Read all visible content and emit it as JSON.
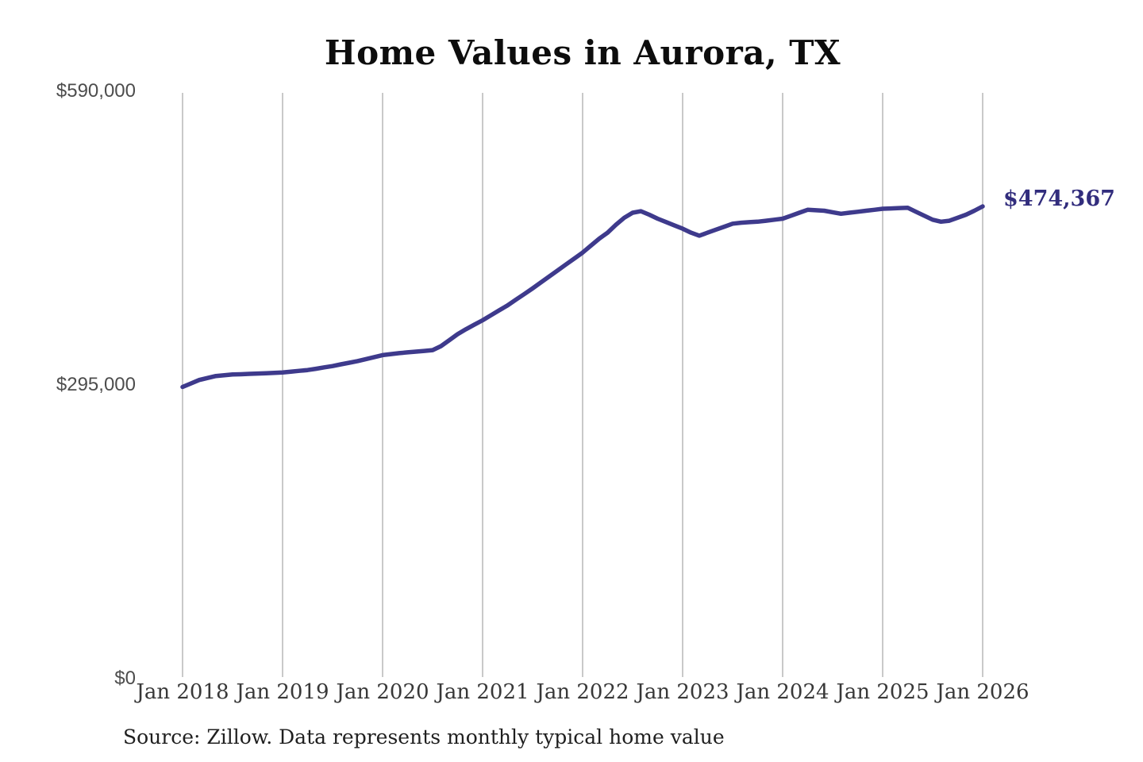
{
  "chart_data": {
    "type": "line",
    "title": "Home Values in Aurora, TX",
    "xlabel": "",
    "ylabel": "",
    "x_labels": [
      "Jan 2018",
      "Jan 2019",
      "Jan 2020",
      "Jan 2021",
      "Jan 2022",
      "Jan 2023",
      "Jan 2024",
      "Jan 2025",
      "Jan 2026"
    ],
    "ylim": [
      0,
      590000
    ],
    "y_tick_values": [
      0,
      295000,
      590000
    ],
    "y_tick_labels": [
      "$0",
      "$295,000",
      "$590,000"
    ],
    "grid": "vertical-only",
    "legend": "none",
    "line_color": "#3e3a8c",
    "gridline_color": "#c9c9c9",
    "end_annotation": {
      "text": "$474,367",
      "value": 474367,
      "color": "#322d7d"
    },
    "source": "Source: Zillow. Data represents monthly typical home value",
    "series": [
      {
        "name": "Monthly typical home value",
        "start": "2018-01",
        "interval": "monthly",
        "values": [
          293000,
          296500,
          300000,
          302000,
          304000,
          304800,
          305500,
          305800,
          306200,
          306500,
          306800,
          307200,
          307500,
          308300,
          309200,
          310000,
          311300,
          312700,
          314000,
          315700,
          317300,
          319000,
          321000,
          323000,
          325000,
          326000,
          327000,
          327800,
          328500,
          329200,
          330000,
          334000,
          340000,
          346000,
          351000,
          355500,
          360000,
          365000,
          370000,
          375000,
          380700,
          386300,
          392000,
          398000,
          404000,
          410000,
          416000,
          422000,
          428000,
          435000,
          442000,
          448000,
          456000,
          463000,
          468000,
          469500,
          466000,
          462000,
          458700,
          455300,
          452000,
          448000,
          445000,
          448000,
          451000,
          454000,
          457000,
          458000,
          458500,
          459000,
          460000,
          461000,
          462000,
          465000,
          468000,
          471000,
          470500,
          470000,
          468500,
          467000,
          468000,
          469000,
          470000,
          471000,
          472000,
          472300,
          472700,
          473000,
          469000,
          465000,
          461000,
          459000,
          460000,
          463000,
          466000,
          470000,
          474367
        ]
      }
    ]
  }
}
